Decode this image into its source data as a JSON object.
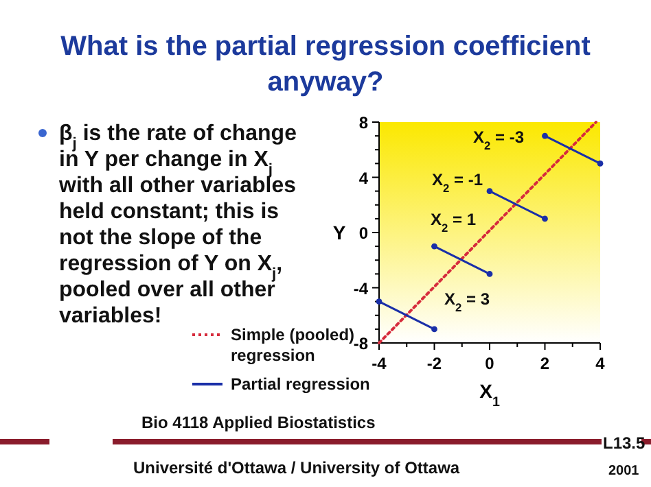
{
  "chart_data": {
    "type": "line",
    "title": "What is the partial regression coefficient anyway?",
    "xlabel": "X$_{1}$",
    "ylabel": "Y",
    "xlim": [
      -4,
      4
    ],
    "ylim": [
      -8,
      8
    ],
    "xticks": [
      -4,
      {
        "value": -3,
        "label": null
      },
      -2,
      {
        "value": -1,
        "label": null
      },
      0,
      {
        "value": 1,
        "label": null
      },
      2,
      {
        "value": 3,
        "label": null
      },
      4
    ],
    "yticks": [
      -8,
      {
        "value": -7,
        "label": null
      },
      {
        "value": -6,
        "label": null
      },
      {
        "value": -5,
        "label": null
      },
      -4,
      {
        "value": -3,
        "label": null
      },
      {
        "value": -2,
        "label": null
      },
      {
        "value": -1,
        "label": null
      },
      0,
      {
        "value": 1,
        "label": null
      },
      {
        "value": 2,
        "label": null
      },
      {
        "value": 3,
        "label": null
      },
      4,
      {
        "value": 5,
        "label": null
      },
      {
        "value": 6,
        "label": null
      },
      {
        "value": 7,
        "label": null
      },
      8
    ],
    "grid": false,
    "legend": "bottom left",
    "series": [
      {
        "name": "Simple (pooled) regression",
        "color": "#d62b3c",
        "line_style": "dotted",
        "marker": "none",
        "x": [
          -4,
          3.85
        ],
        "values": [
          -8,
          8
        ]
      },
      {
        "name": "Partial regression",
        "color": "#1a2fa8",
        "line_style": "solid",
        "marker": "circle",
        "x": [
          -4,
          -2
        ],
        "values": [
          -5,
          -7
        ]
      },
      {
        "color": "#1a2fa8",
        "line_style": "solid",
        "marker": "circle",
        "x": [
          -2,
          0
        ],
        "values": [
          -1,
          -3
        ]
      },
      {
        "color": "#1a2fa8",
        "line_style": "solid",
        "marker": "circle",
        "x": [
          0,
          2
        ],
        "values": [
          3,
          1
        ]
      },
      {
        "color": "#1a2fa8",
        "line_style": "solid",
        "marker": "circle",
        "x": [
          2,
          4
        ],
        "values": [
          7,
          5
        ]
      }
    ],
    "annotations": [
      "β$_{j}$ is the rate of change in Y per change in X$_{j}$ with all other variables held constant; this is not the slope of the regression of Y on X$_{j}$, pooled over all other variables!",
      "Bio 4118 Applied Biostatistics",
      "L13.5",
      "Université d'Ottawa / University of Ottawa",
      "2001",
      "X$_{2}$ = -3",
      "X$_{2}$ = -1",
      "X$_{2}$ = 1",
      "X$_{2}$ = 3"
    ]
  }
}
